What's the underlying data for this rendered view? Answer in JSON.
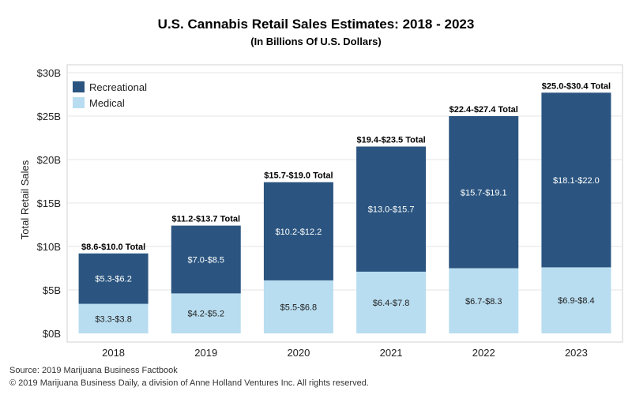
{
  "chart_data": {
    "type": "bar",
    "stacked": true,
    "title": "U.S. Cannabis Retail Sales Estimates: 2018 - 2023",
    "subtitle": "(In Billions Of U.S. Dollars)",
    "ylabel": "Total Retail Sales",
    "xlabel": "",
    "ylim": [
      0,
      30
    ],
    "yticks": [
      0,
      5,
      10,
      15,
      20,
      25,
      30
    ],
    "ytick_labels": [
      "$0B",
      "$5B",
      "$10B",
      "$15B",
      "$20B",
      "$25B",
      "$30B"
    ],
    "categories": [
      "2018",
      "2019",
      "2020",
      "2021",
      "2022",
      "2023"
    ],
    "grid": true,
    "legend_position": "top-left",
    "series": [
      {
        "name": "Medical",
        "color": "#b8ddf0",
        "values": [
          3.4,
          4.6,
          6.1,
          7.1,
          7.5,
          7.6
        ],
        "labels": [
          "$3.3-$3.8",
          "$4.2-$5.2",
          "$5.5-$6.8",
          "$6.4-$7.8",
          "$6.7-$8.3",
          "$6.9-$8.4"
        ]
      },
      {
        "name": "Recreational",
        "color": "#2b5580",
        "values": [
          5.8,
          7.8,
          11.3,
          14.4,
          17.5,
          20.1
        ],
        "labels": [
          "$5.3-$6.2",
          "$7.0-$8.5",
          "$10.2-$12.2",
          "$13.0-$15.7",
          "$15.7-$19.1",
          "$18.1-$22.0"
        ]
      }
    ],
    "totals": [
      "$8.6-$10.0 Total",
      "$11.2-$13.7 Total",
      "$15.7-$19.0 Total",
      "$19.4-$23.5 Total",
      "$22.4-$27.4 Total",
      "$25.0-$30.4 Total"
    ]
  },
  "footer": {
    "source": "Source: 2019 Marijuana Business Factbook",
    "copyright": "© 2019 Marijuana Business Daily, a division of Anne Holland Ventures Inc. All rights reserved."
  }
}
